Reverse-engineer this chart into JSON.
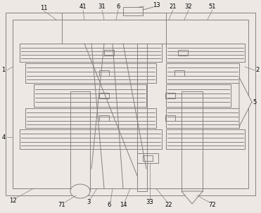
{
  "bg_color": "#ede8e3",
  "line_color": "#888080",
  "line_width": 0.7,
  "fig_width": 3.71,
  "fig_height": 3.03,
  "dpi": 100
}
